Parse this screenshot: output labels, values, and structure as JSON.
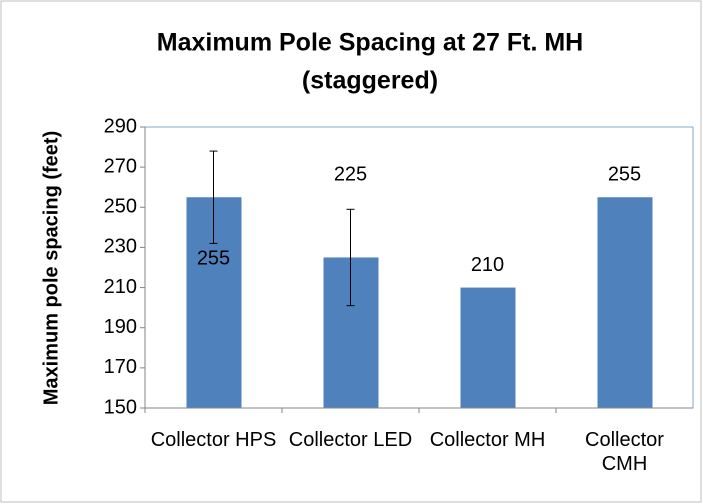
{
  "chart_data": {
    "type": "bar",
    "title": [
      "Maximum Pole Spacing at 27 Ft. MH",
      "(staggered)"
    ],
    "y_label": "Maximum pole spacing (feet)",
    "categories": [
      "Collector HPS",
      "Collector LED",
      "Collector MH",
      "Collector CMH"
    ],
    "values": [
      255,
      225,
      210,
      255
    ],
    "errors": [
      23,
      24,
      null,
      null
    ],
    "color": "#4f81bd",
    "ylim": [
      150,
      290
    ],
    "yticks": [
      150,
      170,
      190,
      210,
      230,
      250,
      270,
      290
    ],
    "grid": false
  }
}
